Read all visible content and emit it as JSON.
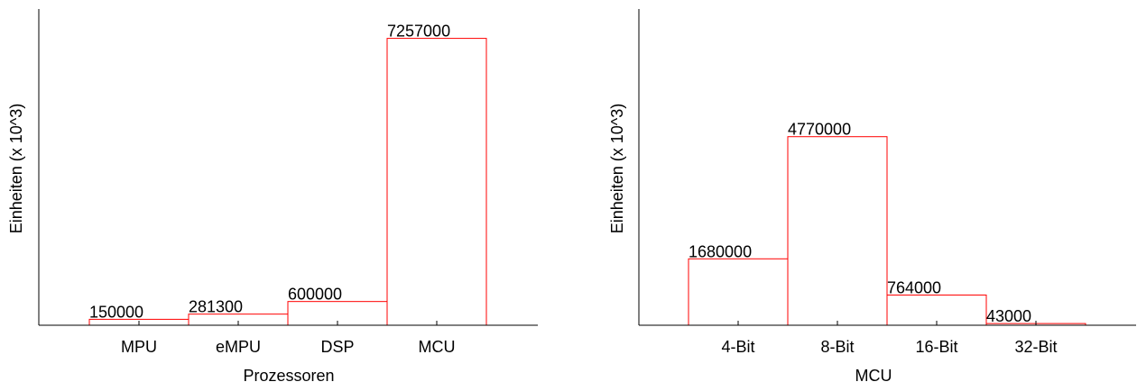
{
  "chart_data": [
    {
      "type": "bar",
      "categories": [
        "MPU",
        "eMPU",
        "DSP",
        "MCU"
      ],
      "values": [
        150000,
        281300,
        600000,
        7257000
      ],
      "data_labels": [
        "150000",
        "281300",
        "600000",
        "7257000"
      ],
      "title": "",
      "xlabel": "Prozessoren",
      "ylabel": "Einheiten (x 10^3)",
      "ylim": [
        0,
        8000000
      ],
      "grid": false,
      "y_ticks_shown": false,
      "bar_color": "#ff0000"
    },
    {
      "type": "bar",
      "categories": [
        "4-Bit",
        "8-Bit",
        "16-Bit",
        "32-Bit"
      ],
      "values": [
        1680000,
        4770000,
        764000,
        43000
      ],
      "data_labels": [
        "1680000",
        "4770000",
        "764000",
        "43000"
      ],
      "title": "",
      "xlabel": "MCU",
      "ylabel": "Einheiten (x 10^3)",
      "ylim": [
        0,
        8000000
      ],
      "grid": false,
      "y_ticks_shown": false,
      "bar_color": "#ff0000"
    }
  ]
}
